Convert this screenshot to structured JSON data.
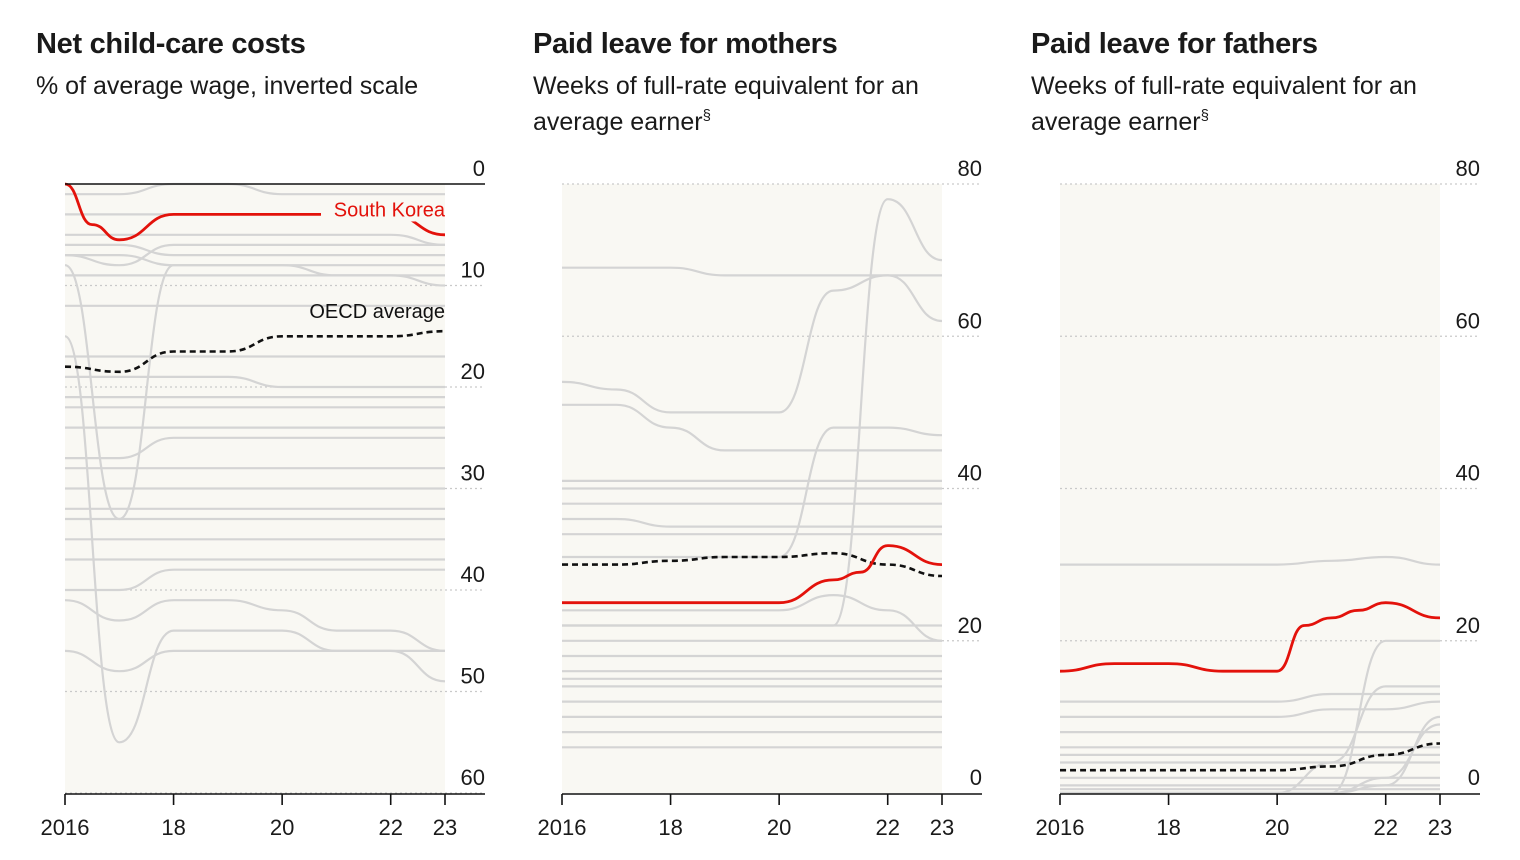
{
  "chart_data": [
    {
      "type": "line",
      "title": "Net child-care costs",
      "subtitle": "% of average wage, inverted scale",
      "subtitle_sup": "",
      "y_inverted": true,
      "ylim": [
        0,
        60
      ],
      "xlim": [
        2016,
        2023
      ],
      "x_ticks": [
        {
          "value": 2016,
          "label": "2016"
        },
        {
          "value": 2018,
          "label": "18"
        },
        {
          "value": 2020,
          "label": "20"
        },
        {
          "value": 2022,
          "label": "22"
        },
        {
          "value": 2023,
          "label": "23"
        }
      ],
      "y_ticks": [
        {
          "value": 0,
          "label": "0"
        },
        {
          "value": 10,
          "label": "10"
        },
        {
          "value": 20,
          "label": "20"
        },
        {
          "value": 30,
          "label": "30"
        },
        {
          "value": 40,
          "label": "40"
        },
        {
          "value": 50,
          "label": "50"
        },
        {
          "value": 60,
          "label": "60"
        }
      ],
      "highlight": {
        "name": "South Korea",
        "x": [
          2016,
          2016.5,
          2017,
          2018,
          2019,
          2020,
          2021,
          2022,
          2023
        ],
        "y": [
          0,
          4,
          5.5,
          3,
          3,
          3,
          3,
          3,
          5
        ]
      },
      "average": {
        "name": "OECD average",
        "x": [
          2016,
          2017,
          2018,
          2019,
          2020,
          2021,
          2022,
          2023
        ],
        "y": [
          18,
          18.5,
          16.5,
          16.5,
          15,
          15,
          15,
          14.5
        ]
      },
      "others": [
        [
          1,
          1,
          0,
          0,
          1,
          1,
          1,
          1
        ],
        [
          3,
          3,
          3,
          3,
          3,
          3,
          3,
          3
        ],
        [
          5,
          5,
          5,
          5,
          5,
          5,
          5,
          6
        ],
        [
          6,
          6,
          7,
          7,
          7,
          7,
          7,
          7
        ],
        [
          7,
          7,
          8,
          8,
          8,
          9,
          9,
          9
        ],
        [
          7,
          8,
          6,
          6,
          6,
          6,
          6,
          6
        ],
        [
          9,
          9,
          9,
          9,
          9,
          9,
          9,
          10
        ],
        [
          12,
          12,
          12,
          12,
          12,
          12,
          12,
          12
        ],
        [
          17,
          17,
          17,
          17,
          17,
          17,
          17,
          17
        ],
        [
          19,
          19,
          19,
          19,
          20,
          20,
          20,
          20
        ],
        [
          21,
          21,
          21,
          21,
          21,
          21,
          21,
          21
        ],
        [
          22,
          22,
          22,
          22,
          22,
          22,
          22,
          22
        ],
        [
          24,
          24,
          24,
          24,
          24,
          24,
          24,
          24
        ],
        [
          27,
          27,
          25,
          25,
          25,
          25,
          25,
          25
        ],
        [
          28,
          28,
          28,
          28,
          28,
          28,
          28,
          28
        ],
        [
          30,
          30,
          30,
          30,
          30,
          30,
          30,
          30
        ],
        [
          32,
          32,
          32,
          32,
          32,
          32,
          32,
          32
        ],
        [
          33,
          33,
          33,
          33,
          33,
          33,
          33,
          33
        ],
        [
          35,
          35,
          35,
          35,
          35,
          35,
          35,
          35
        ],
        [
          37,
          37,
          37,
          37,
          37,
          37,
          37,
          37
        ],
        [
          40,
          40,
          38,
          38,
          38,
          38,
          38,
          38
        ],
        [
          41,
          43,
          41,
          41,
          42,
          44,
          44,
          46
        ],
        [
          46,
          48,
          46,
          46,
          46,
          46,
          46,
          46
        ],
        [
          15,
          55,
          44,
          44,
          44,
          46,
          46,
          49
        ],
        [
          8,
          33,
          8,
          8,
          8,
          8,
          8,
          8
        ]
      ]
    },
    {
      "type": "line",
      "title": "Paid leave for mothers",
      "subtitle": "Weeks of full-rate equivalent for an average earner",
      "subtitle_sup": "§",
      "y_inverted": false,
      "ylim": [
        0,
        80
      ],
      "xlim": [
        2016,
        2023
      ],
      "x_ticks": [
        {
          "value": 2016,
          "label": "2016"
        },
        {
          "value": 2018,
          "label": "18"
        },
        {
          "value": 2020,
          "label": "20"
        },
        {
          "value": 2022,
          "label": "22"
        },
        {
          "value": 2023,
          "label": "23"
        }
      ],
      "y_ticks": [
        {
          "value": 0,
          "label": "0"
        },
        {
          "value": 20,
          "label": "20"
        },
        {
          "value": 40,
          "label": "40"
        },
        {
          "value": 60,
          "label": "60"
        },
        {
          "value": 80,
          "label": "80"
        }
      ],
      "highlight": {
        "name": "",
        "x": [
          2016,
          2017,
          2018,
          2019,
          2020,
          2021,
          2021.5,
          2022,
          2023
        ],
        "y": [
          25,
          25,
          25,
          25,
          25,
          28,
          29,
          32.5,
          30
        ]
      },
      "average": {
        "name": "",
        "x": [
          2016,
          2017,
          2018,
          2019,
          2020,
          2021,
          2022,
          2023
        ],
        "y": [
          30,
          30,
          30.5,
          31,
          31,
          31.5,
          30,
          28.5
        ]
      },
      "others": [
        [
          69,
          69,
          69,
          68,
          68,
          68,
          68,
          68
        ],
        [
          54,
          53,
          50,
          50,
          50,
          66,
          68,
          62
        ],
        [
          51,
          51,
          48,
          45,
          45,
          45,
          45,
          45
        ],
        [
          41,
          41,
          41,
          41,
          41,
          41,
          41,
          41
        ],
        [
          40,
          40,
          40,
          40,
          40,
          40,
          40,
          40
        ],
        [
          38,
          38,
          38,
          38,
          38,
          38,
          38,
          38
        ],
        [
          36,
          36,
          35,
          35,
          35,
          35,
          35,
          35
        ],
        [
          34,
          34,
          34,
          34,
          34,
          34,
          34,
          34
        ],
        [
          31,
          31,
          31,
          31,
          31,
          48,
          48,
          47
        ],
        [
          22,
          22,
          22,
          22,
          22,
          22,
          22,
          22
        ],
        [
          20,
          20,
          20,
          20,
          20,
          20,
          20,
          20
        ],
        [
          18,
          18,
          18,
          18,
          18,
          18,
          18,
          18
        ],
        [
          16,
          16,
          16,
          16,
          16,
          16,
          16,
          16
        ],
        [
          15,
          15,
          15,
          15,
          15,
          15,
          15,
          15
        ],
        [
          14,
          14,
          14,
          14,
          14,
          14,
          14,
          14
        ],
        [
          12,
          12,
          12,
          12,
          12,
          12,
          12,
          12
        ],
        [
          10,
          10,
          10,
          10,
          10,
          10,
          10,
          10
        ],
        [
          8,
          8,
          8,
          8,
          8,
          8,
          8,
          8
        ],
        [
          6,
          6,
          6,
          6,
          6,
          6,
          6,
          6
        ],
        [
          22,
          22,
          22,
          22,
          22,
          22,
          78,
          70
        ],
        [
          24,
          24,
          24,
          24,
          24,
          26,
          24,
          20
        ]
      ]
    },
    {
      "type": "line",
      "title": "Paid leave for fathers",
      "subtitle": "Weeks of full-rate equivalent for an average earner",
      "subtitle_sup": "§",
      "y_inverted": false,
      "ylim": [
        0,
        80
      ],
      "xlim": [
        2016,
        2023
      ],
      "x_ticks": [
        {
          "value": 2016,
          "label": "2016"
        },
        {
          "value": 2018,
          "label": "18"
        },
        {
          "value": 2020,
          "label": "20"
        },
        {
          "value": 2022,
          "label": "22"
        },
        {
          "value": 2023,
          "label": "23"
        }
      ],
      "y_ticks": [
        {
          "value": 0,
          "label": "0"
        },
        {
          "value": 20,
          "label": "20"
        },
        {
          "value": 40,
          "label": "40"
        },
        {
          "value": 60,
          "label": "60"
        },
        {
          "value": 80,
          "label": "80"
        }
      ],
      "highlight": {
        "name": "",
        "x": [
          2016,
          2017,
          2018,
          2019,
          2020,
          2020.5,
          2021,
          2021.5,
          2022,
          2023
        ],
        "y": [
          16,
          17,
          17,
          16,
          16,
          22,
          23,
          24,
          25,
          23
        ]
      },
      "average": {
        "name": "",
        "x": [
          2016,
          2017,
          2018,
          2019,
          2020,
          2021,
          2022,
          2023
        ],
        "y": [
          3,
          3,
          3,
          3,
          3,
          3.5,
          5,
          6.5
        ]
      },
      "others": [
        [
          30,
          30,
          30,
          30,
          30,
          30.5,
          31,
          30
        ],
        [
          12,
          12,
          12,
          12,
          12,
          13,
          13,
          13
        ],
        [
          10,
          10,
          10,
          10,
          10,
          11,
          11,
          12
        ],
        [
          8,
          8,
          8,
          8,
          8,
          8,
          8,
          8
        ],
        [
          6,
          6,
          6,
          6,
          6,
          6,
          6,
          6
        ],
        [
          5,
          5,
          5,
          5,
          5,
          5,
          5,
          5
        ],
        [
          4,
          4,
          4,
          4,
          4,
          4,
          4,
          4
        ],
        [
          2,
          2,
          2,
          2,
          2,
          2,
          2,
          2
        ],
        [
          1,
          1,
          1,
          1,
          1,
          1,
          1,
          1
        ],
        [
          0.5,
          0.5,
          0.5,
          0.5,
          0.5,
          0.5,
          0.5,
          0.5
        ],
        [
          0,
          0,
          0,
          0,
          0,
          0,
          20,
          20
        ],
        [
          0,
          0,
          0,
          0,
          0,
          4,
          14,
          14
        ],
        [
          0,
          0,
          0,
          0,
          0,
          0,
          2,
          9
        ],
        [
          0,
          0,
          0,
          0,
          0,
          0,
          1,
          10
        ]
      ]
    }
  ]
}
